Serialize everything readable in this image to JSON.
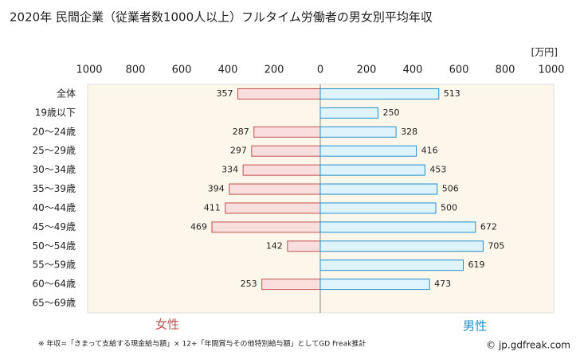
{
  "chart_data": {
    "type": "butterfly",
    "title": "2020年 民間企業（従業者数1000人以上）フルタイム労働者の男女別平均年収",
    "unit": "[万円]",
    "categories": [
      "全体",
      "19歳以下",
      "20～24歳",
      "25～29歳",
      "30～34歳",
      "35～39歳",
      "40～44歳",
      "45～49歳",
      "50～54歳",
      "55～59歳",
      "60～64歳",
      "65～69歳"
    ],
    "series": [
      {
        "name": "女性",
        "color": "#c0504d",
        "values": [
          357,
          null,
          287,
          297,
          334,
          394,
          411,
          469,
          142,
          null,
          253,
          null
        ]
      },
      {
        "name": "男性",
        "color": "#1f8fcf",
        "values": [
          513,
          250,
          328,
          416,
          453,
          506,
          500,
          672,
          705,
          619,
          473,
          null
        ]
      }
    ],
    "xlim": [
      0,
      1000
    ],
    "xticks": [
      0,
      200,
      400,
      600,
      800,
      1000
    ],
    "note": "※ 年収=「きまって支給する現金給与額」× 12+「年間賞与その他特別給与額」としてGD Freak推計",
    "source": "© jp.gdfreak.com"
  }
}
